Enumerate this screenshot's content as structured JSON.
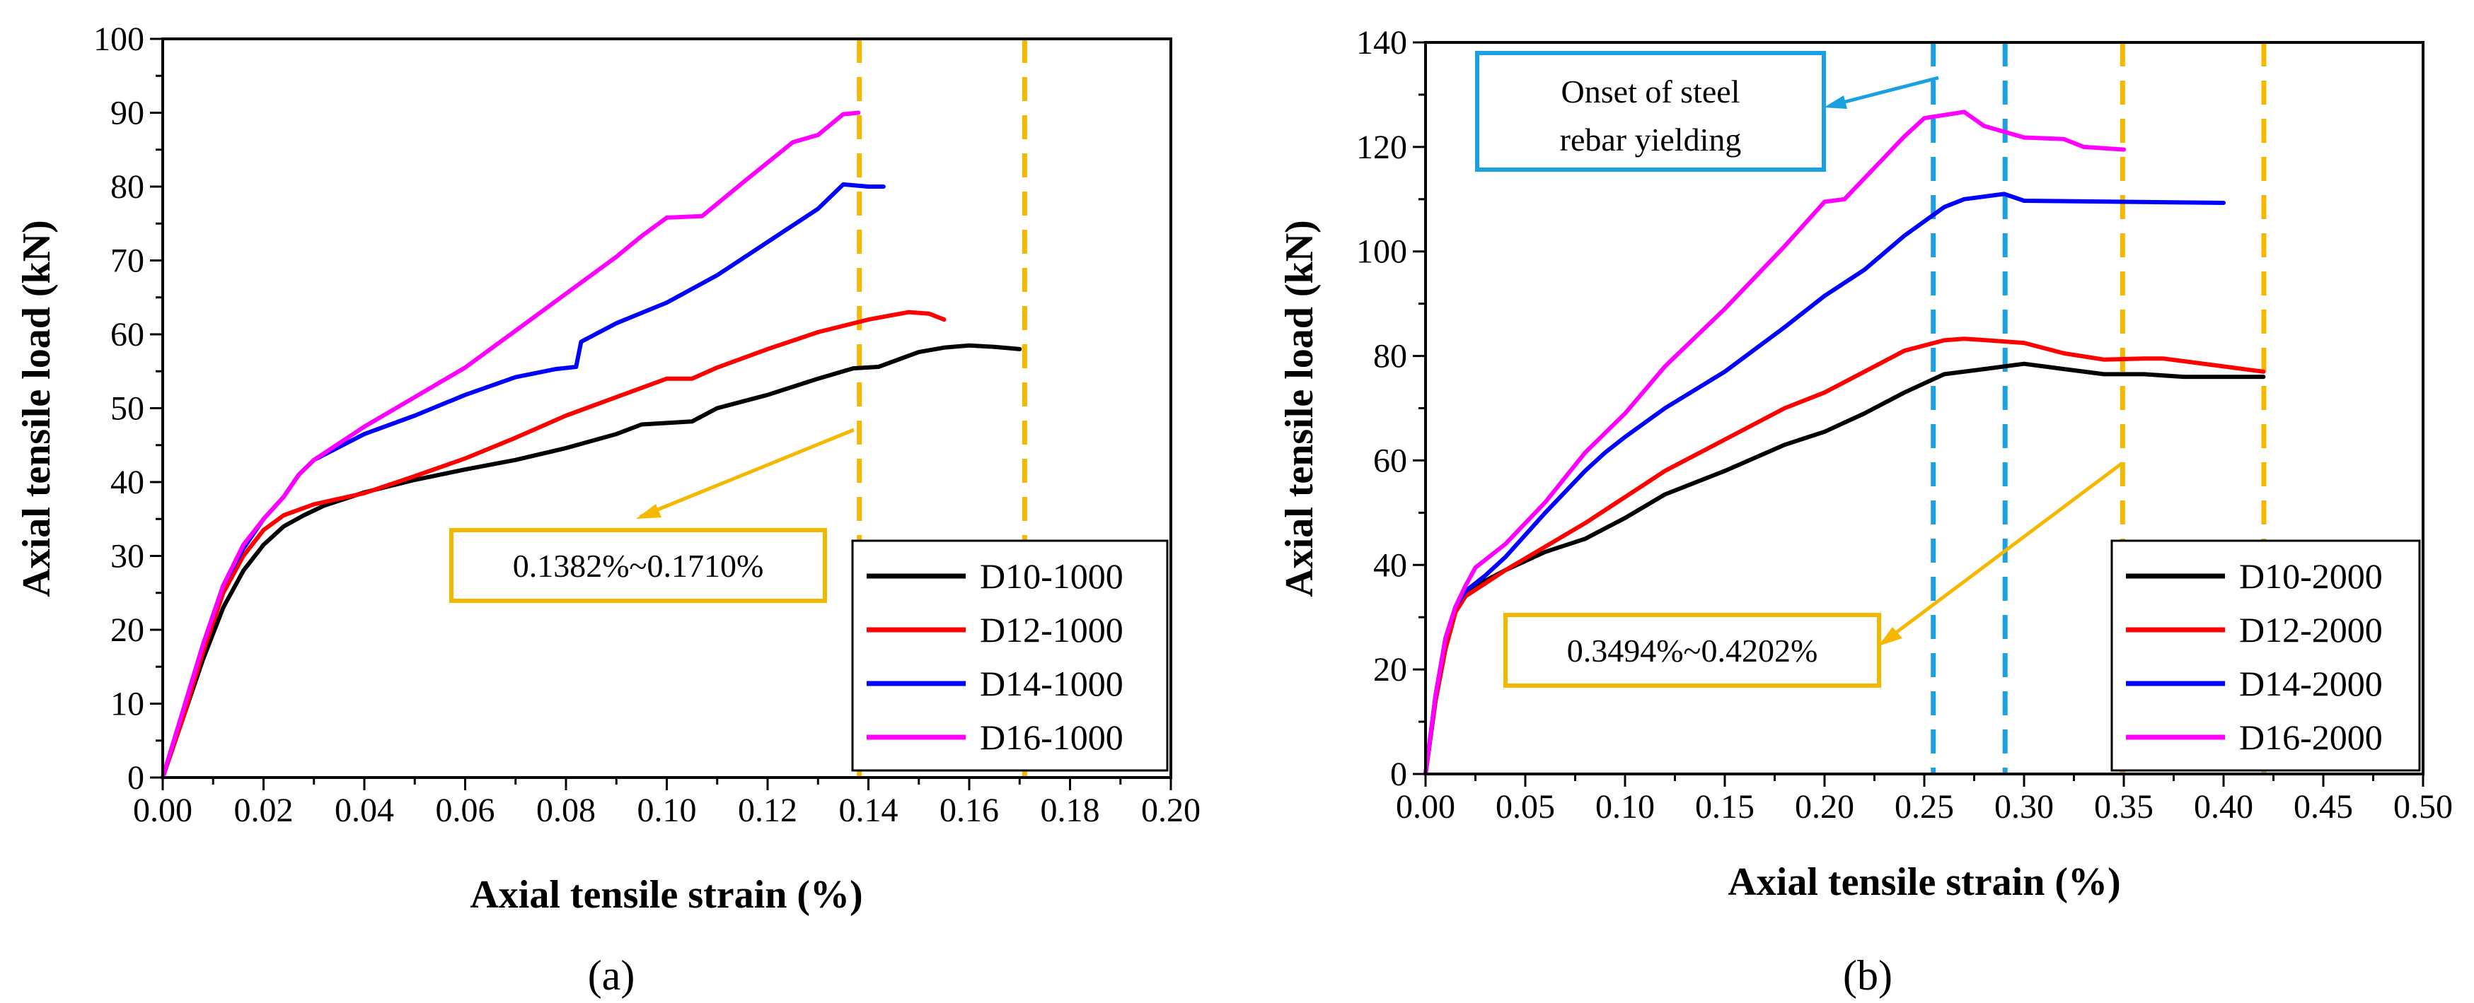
{
  "chart_data": [
    {
      "type": "line",
      "panel_label": "(a)",
      "xlabel": "Axial tensile strain (%)",
      "ylabel": "Axial tensile load (kN)",
      "xlim": [
        0,
        0.2
      ],
      "ylim": [
        0,
        100
      ],
      "xticks": [
        "0.00",
        "0.02",
        "0.04",
        "0.06",
        "0.08",
        "0.10",
        "0.12",
        "0.14",
        "0.16",
        "0.18",
        "0.20"
      ],
      "yticks": [
        "0",
        "10",
        "20",
        "30",
        "40",
        "50",
        "60",
        "70",
        "80",
        "90",
        "100"
      ],
      "grid": false,
      "legend_position": "bottom-right",
      "series": [
        {
          "name": "D10-1000",
          "color": "#000000",
          "points": [
            [
              0,
              0
            ],
            [
              0.004,
              8
            ],
            [
              0.008,
              16
            ],
            [
              0.012,
              23
            ],
            [
              0.016,
              28
            ],
            [
              0.02,
              31.5
            ],
            [
              0.024,
              34
            ],
            [
              0.028,
              35.5
            ],
            [
              0.032,
              36.8
            ],
            [
              0.04,
              38.6
            ],
            [
              0.05,
              40.3
            ],
            [
              0.06,
              41.7
            ],
            [
              0.07,
              43
            ],
            [
              0.08,
              44.6
            ],
            [
              0.09,
              46.5
            ],
            [
              0.095,
              47.8
            ],
            [
              0.105,
              48.2
            ],
            [
              0.11,
              50
            ],
            [
              0.12,
              51.8
            ],
            [
              0.13,
              54
            ],
            [
              0.137,
              55.4
            ],
            [
              0.142,
              55.6
            ],
            [
              0.15,
              57.6
            ],
            [
              0.155,
              58.2
            ],
            [
              0.16,
              58.5
            ],
            [
              0.165,
              58.3
            ],
            [
              0.17,
              58
            ]
          ]
        },
        {
          "name": "D12-1000",
          "color": "#ff0000",
          "points": [
            [
              0,
              0
            ],
            [
              0.004,
              8
            ],
            [
              0.008,
              17
            ],
            [
              0.012,
              25
            ],
            [
              0.016,
              30
            ],
            [
              0.02,
              33.5
            ],
            [
              0.024,
              35.5
            ],
            [
              0.03,
              37
            ],
            [
              0.04,
              38.5
            ],
            [
              0.05,
              40.8
            ],
            [
              0.06,
              43.2
            ],
            [
              0.07,
              46
            ],
            [
              0.075,
              47.5
            ],
            [
              0.08,
              49
            ],
            [
              0.09,
              51.5
            ],
            [
              0.1,
              54
            ],
            [
              0.105,
              54
            ],
            [
              0.11,
              55.5
            ],
            [
              0.12,
              58
            ],
            [
              0.13,
              60.3
            ],
            [
              0.14,
              62
            ],
            [
              0.148,
              63
            ],
            [
              0.152,
              62.8
            ],
            [
              0.155,
              62
            ]
          ]
        },
        {
          "name": "D14-1000",
          "color": "#0000ff",
          "points": [
            [
              0,
              0
            ],
            [
              0.004,
              9
            ],
            [
              0.008,
              18
            ],
            [
              0.012,
              26
            ],
            [
              0.016,
              31
            ],
            [
              0.02,
              35
            ],
            [
              0.024,
              38
            ],
            [
              0.027,
              41
            ],
            [
              0.03,
              43
            ],
            [
              0.04,
              46.5
            ],
            [
              0.05,
              49
            ],
            [
              0.06,
              51.8
            ],
            [
              0.07,
              54.2
            ],
            [
              0.078,
              55.3
            ],
            [
              0.082,
              55.6
            ],
            [
              0.083,
              59
            ],
            [
              0.09,
              61.5
            ],
            [
              0.1,
              64.3
            ],
            [
              0.11,
              68
            ],
            [
              0.12,
              72.5
            ],
            [
              0.13,
              77
            ],
            [
              0.135,
              80.3
            ],
            [
              0.14,
              80
            ],
            [
              0.143,
              80
            ]
          ]
        },
        {
          "name": "D16-1000",
          "color": "#ff00ff",
          "points": [
            [
              0,
              0
            ],
            [
              0.004,
              9
            ],
            [
              0.008,
              18
            ],
            [
              0.012,
              26
            ],
            [
              0.016,
              31.5
            ],
            [
              0.02,
              35
            ],
            [
              0.024,
              38
            ],
            [
              0.027,
              41
            ],
            [
              0.03,
              43
            ],
            [
              0.04,
              47.5
            ],
            [
              0.05,
              51.5
            ],
            [
              0.06,
              55.5
            ],
            [
              0.07,
              60.5
            ],
            [
              0.08,
              65.5
            ],
            [
              0.09,
              70.5
            ],
            [
              0.095,
              73.3
            ],
            [
              0.1,
              75.8
            ],
            [
              0.107,
              76
            ],
            [
              0.115,
              80.5
            ],
            [
              0.125,
              86
            ],
            [
              0.13,
              87
            ],
            [
              0.135,
              89.8
            ],
            [
              0.138,
              90
            ]
          ]
        }
      ],
      "reference_lines": [
        {
          "x": 0.1382,
          "color": "#f5b800"
        },
        {
          "x": 0.171,
          "color": "#f5b800"
        }
      ],
      "annotations": [
        {
          "text": "0.1382%~0.1710%",
          "border_color": "#f5b800"
        }
      ]
    },
    {
      "type": "line",
      "panel_label": "(b)",
      "xlabel": "Axial tensile strain (%)",
      "ylabel": "Axial tensile load (kN)",
      "xlim": [
        0,
        0.5
      ],
      "ylim": [
        0,
        140
      ],
      "xticks": [
        "0.00",
        "0.05",
        "0.10",
        "0.15",
        "0.20",
        "0.25",
        "0.30",
        "0.35",
        "0.40",
        "0.45",
        "0.50"
      ],
      "yticks": [
        "0",
        "20",
        "40",
        "60",
        "80",
        "100",
        "120",
        "140"
      ],
      "grid": false,
      "legend_position": "bottom-right",
      "series": [
        {
          "name": "D10-2000",
          "color": "#000000",
          "points": [
            [
              0,
              0
            ],
            [
              0.005,
              14
            ],
            [
              0.01,
              24
            ],
            [
              0.015,
              31
            ],
            [
              0.02,
              34
            ],
            [
              0.03,
              37
            ],
            [
              0.04,
              39
            ],
            [
              0.06,
              42.5
            ],
            [
              0.08,
              45
            ],
            [
              0.1,
              49
            ],
            [
              0.12,
              53.5
            ],
            [
              0.15,
              58
            ],
            [
              0.18,
              63
            ],
            [
              0.2,
              65.5
            ],
            [
              0.22,
              69
            ],
            [
              0.24,
              73
            ],
            [
              0.26,
              76.5
            ],
            [
              0.28,
              77.5
            ],
            [
              0.3,
              78.5
            ],
            [
              0.32,
              77.5
            ],
            [
              0.34,
              76.5
            ],
            [
              0.36,
              76.5
            ],
            [
              0.38,
              76
            ],
            [
              0.4,
              76
            ],
            [
              0.42,
              76
            ]
          ]
        },
        {
          "name": "D12-2000",
          "color": "#ff0000",
          "points": [
            [
              0,
              0
            ],
            [
              0.005,
              14
            ],
            [
              0.01,
              24
            ],
            [
              0.015,
              31
            ],
            [
              0.02,
              34
            ],
            [
              0.03,
              36.5
            ],
            [
              0.04,
              39
            ],
            [
              0.06,
              43.5
            ],
            [
              0.08,
              48
            ],
            [
              0.1,
              53
            ],
            [
              0.12,
              58
            ],
            [
              0.15,
              64
            ],
            [
              0.18,
              70
            ],
            [
              0.2,
              73
            ],
            [
              0.22,
              77
            ],
            [
              0.24,
              81
            ],
            [
              0.26,
              83
            ],
            [
              0.27,
              83.3
            ],
            [
              0.3,
              82.5
            ],
            [
              0.32,
              80.5
            ],
            [
              0.34,
              79.3
            ],
            [
              0.36,
              79.5
            ],
            [
              0.37,
              79.5
            ],
            [
              0.4,
              78
            ],
            [
              0.42,
              77
            ]
          ]
        },
        {
          "name": "D14-2000",
          "color": "#0000ff",
          "points": [
            [
              0,
              0
            ],
            [
              0.005,
              15
            ],
            [
              0.01,
              26
            ],
            [
              0.015,
              32
            ],
            [
              0.02,
              35
            ],
            [
              0.03,
              38
            ],
            [
              0.04,
              41.5
            ],
            [
              0.06,
              50
            ],
            [
              0.08,
              58
            ],
            [
              0.09,
              61.5
            ],
            [
              0.1,
              64.5
            ],
            [
              0.12,
              70
            ],
            [
              0.15,
              77
            ],
            [
              0.18,
              85.5
            ],
            [
              0.2,
              91.5
            ],
            [
              0.22,
              96.5
            ],
            [
              0.24,
              103
            ],
            [
              0.26,
              108.5
            ],
            [
              0.27,
              110
            ],
            [
              0.29,
              111
            ],
            [
              0.3,
              109.7
            ],
            [
              0.35,
              109.5
            ],
            [
              0.4,
              109.3
            ]
          ]
        },
        {
          "name": "D16-2000",
          "color": "#ff00ff",
          "points": [
            [
              0,
              0
            ],
            [
              0.005,
              15
            ],
            [
              0.01,
              26
            ],
            [
              0.015,
              32
            ],
            [
              0.02,
              36
            ],
            [
              0.025,
              39.5
            ],
            [
              0.04,
              44
            ],
            [
              0.06,
              52
            ],
            [
              0.08,
              61.5
            ],
            [
              0.1,
              69
            ],
            [
              0.12,
              78
            ],
            [
              0.15,
              89
            ],
            [
              0.18,
              101
            ],
            [
              0.2,
              109.5
            ],
            [
              0.21,
              110
            ],
            [
              0.22,
              114
            ],
            [
              0.24,
              122
            ],
            [
              0.25,
              125.5
            ],
            [
              0.27,
              126.7
            ],
            [
              0.28,
              124
            ],
            [
              0.3,
              121.8
            ],
            [
              0.32,
              121.5
            ],
            [
              0.33,
              120
            ],
            [
              0.35,
              119.5
            ]
          ]
        }
      ],
      "reference_lines": [
        {
          "x": 0.2545,
          "color": "#1ba1e2"
        },
        {
          "x": 0.2905,
          "color": "#1ba1e2"
        },
        {
          "x": 0.3494,
          "color": "#f5b800"
        },
        {
          "x": 0.4202,
          "color": "#f5b800"
        }
      ],
      "annotations": [
        {
          "text": "0.3494%~0.4202%",
          "border_color": "#f5b800"
        },
        {
          "text": "Onset of steel rebar yielding",
          "border_color": "#1ba1e2"
        }
      ]
    }
  ],
  "annotation_a": {
    "text": "0.1382%~0.1710%"
  },
  "annotation_b_range": {
    "text": "0.3494%~0.4202%"
  },
  "annotation_b_yield": {
    "line1": "Onset of steel",
    "line2": "rebar yielding"
  },
  "colors": {
    "axis": "#000000",
    "orange_ref": "#f5b800",
    "blue_ref": "#1ba1e2"
  }
}
